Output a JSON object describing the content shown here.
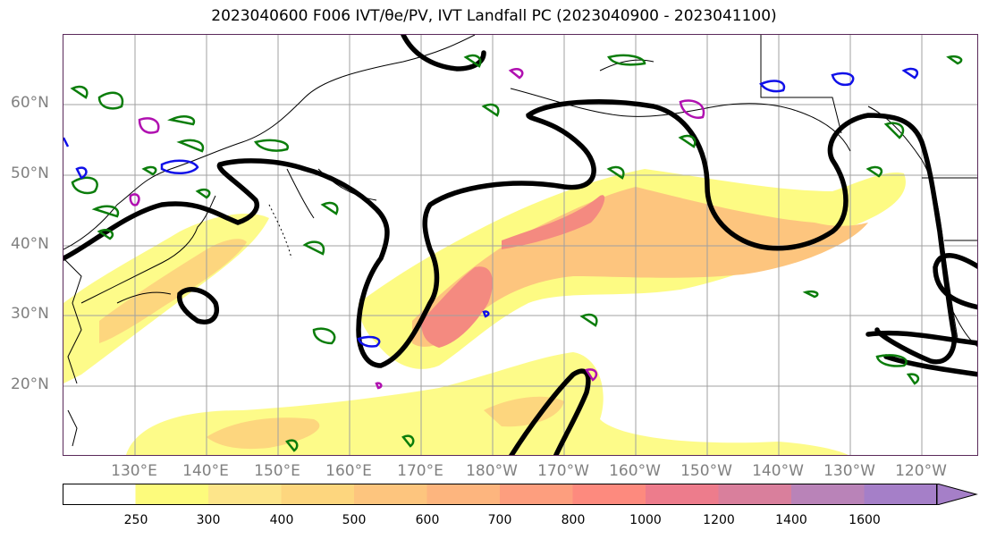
{
  "title": "2023040600 F006 IVT/θe/PV, IVT Landfall PC (2023040900 - 2023041100)",
  "lat_labels": [
    "60°N",
    "50°N",
    "40°N",
    "30°N",
    "20°N"
  ],
  "lon_labels": [
    "130°E",
    "140°E",
    "150°E",
    "160°E",
    "170°E",
    "180°W",
    "170°W",
    "160°W",
    "150°W",
    "140°W",
    "130°W",
    "120°W"
  ],
  "colorbar": {
    "ticks": [
      "250",
      "300",
      "400",
      "500",
      "600",
      "700",
      "800",
      "1000",
      "1200",
      "1400",
      "1600"
    ],
    "colors": [
      "#ffffff",
      "#fdfb7c",
      "#fde58a",
      "#fdd67e",
      "#fdc57e",
      "#fdb57e",
      "#fd9e7e",
      "#fd8a7e",
      "#ed7c8c",
      "#d97f9c",
      "#b983b8",
      "#a57fc8"
    ]
  },
  "colors": {
    "ivt_low": "#fdfb7c",
    "ivt_mid": "#fdc57e",
    "ivt_high": "#f48a80",
    "contour_black": "#000000",
    "contour_green": "#0b7d0b",
    "contour_blue": "#1010e8",
    "contour_magenta": "#b010b0",
    "grid": "#a0a0a0"
  }
}
